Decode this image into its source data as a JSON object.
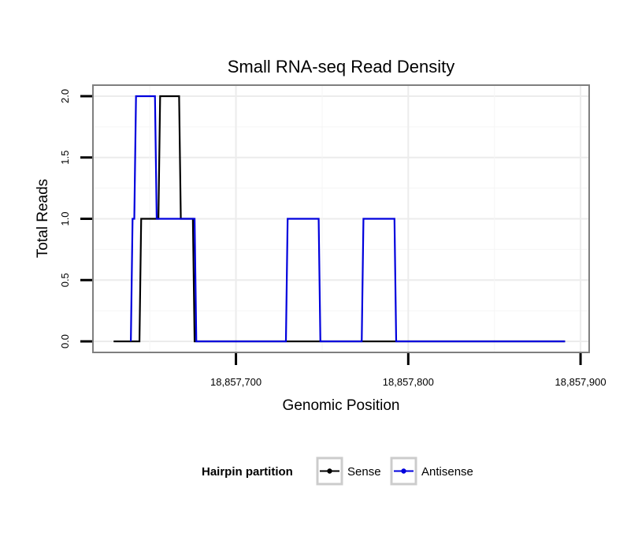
{
  "chart_data": {
    "type": "line",
    "title": "Small RNA-seq Read Density",
    "xlabel": "Genomic Position",
    "ylabel": "Total Reads",
    "xlim": [
      18857617,
      18857905
    ],
    "ylim": [
      -0.09,
      2.09
    ],
    "x_ticks": [
      18857700,
      18857800,
      18857900
    ],
    "x_tick_labels": [
      "18,857,700",
      "18,857,800",
      "18,857,900"
    ],
    "y_ticks": [
      0,
      0.5,
      1,
      1.5,
      2
    ],
    "y_tick_labels": [
      "0.0",
      "0.5",
      "1.0",
      "1.5",
      "2.0"
    ],
    "grid": true,
    "legend": {
      "title": "Hairpin partition",
      "position": "bottom"
    },
    "series": [
      {
        "name": "Sense",
        "color": "#000000",
        "x": [
          18857629,
          18857644,
          18857645,
          18857655,
          18857656,
          18857667,
          18857668,
          18857675,
          18857676,
          18857680,
          18857681,
          18857891
        ],
        "y": [
          0,
          0,
          1,
          1,
          2,
          2,
          1,
          1,
          0,
          0,
          0,
          0
        ]
      },
      {
        "name": "Antisense",
        "color": "#0000dd",
        "x": [
          18857639,
          18857640,
          18857641,
          18857642,
          18857653,
          18857654,
          18857663,
          18857664,
          18857666,
          18857667,
          18857676,
          18857677,
          18857729,
          18857730,
          18857748,
          18857749,
          18857773,
          18857774,
          18857792,
          18857793,
          18857891
        ],
        "y": [
          0,
          1,
          1,
          2,
          2,
          1,
          1,
          1,
          1,
          1,
          1,
          0,
          0,
          1,
          1,
          0,
          0,
          1,
          1,
          0,
          0
        ]
      }
    ]
  }
}
